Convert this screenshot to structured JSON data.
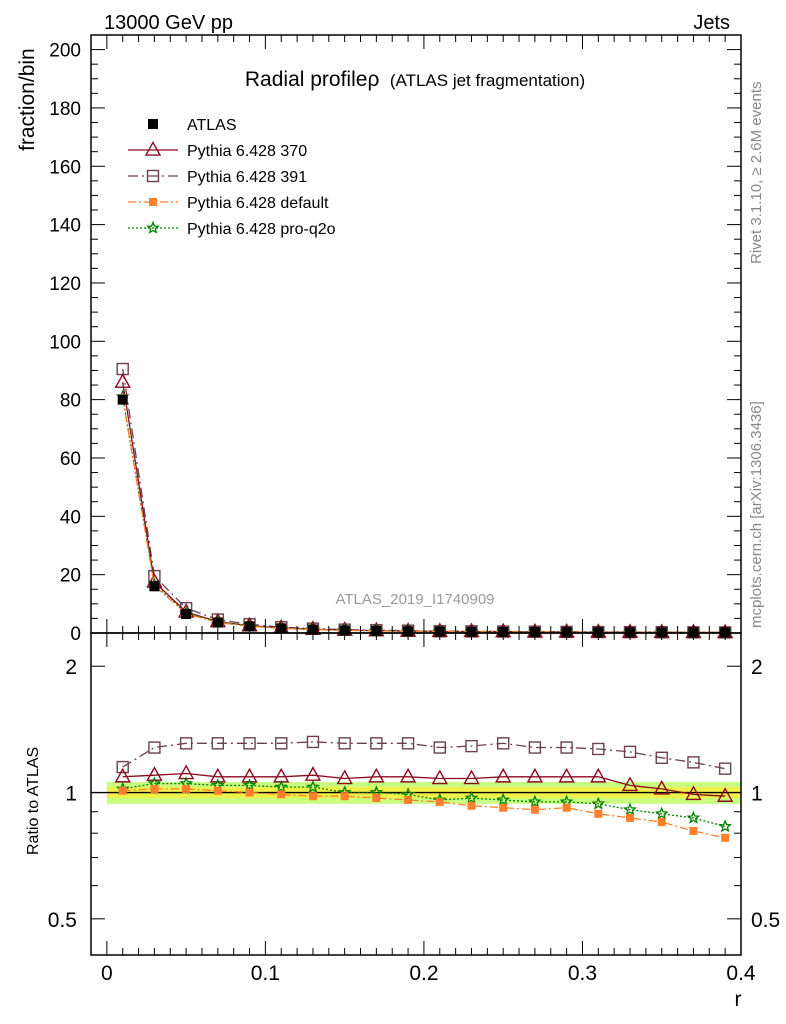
{
  "header": {
    "left": "13000 GeV pp",
    "right": "Jets"
  },
  "side_labels": {
    "rivet": "Rivet 3.1.10, ≥ 2.6M events",
    "mcplots": "mcplots.cern.ch [arXiv:1306.3436]"
  },
  "colors": {
    "atlas": "#000000",
    "p370": "#8b0a1e",
    "p391": "#6b4050",
    "pdefault": "#ff7f2a",
    "pq2o": "#008000",
    "band_inner": "#f0f04a",
    "band_outer": "#c8ff80"
  },
  "chart_data": [
    {
      "type": "line",
      "title_main": "Radial profileρ",
      "title_sub": "(ATLAS jet fragmentation)",
      "ylabel": "fraction/bin",
      "watermark": "ATLAS_2019_I1740909",
      "xlim": [
        -0.01,
        0.4
      ],
      "ylim": [
        0,
        205
      ],
      "yticks": [
        0,
        20,
        40,
        60,
        80,
        100,
        120,
        140,
        160,
        180,
        200
      ],
      "x": [
        0.01,
        0.03,
        0.05,
        0.07,
        0.09,
        0.11,
        0.13,
        0.15,
        0.17,
        0.19,
        0.21,
        0.23,
        0.25,
        0.27,
        0.29,
        0.31,
        0.33,
        0.35,
        0.37,
        0.39
      ],
      "legend_placement": "top-left",
      "series": [
        {
          "name": "ATLAS",
          "key": "atlas",
          "values": [
            80,
            16,
            6.5,
            3.6,
            2.3,
            1.6,
            1.2,
            0.9,
            0.75,
            0.6,
            0.5,
            0.45,
            0.4,
            0.35,
            0.3,
            0.27,
            0.25,
            0.22,
            0.2,
            0.18
          ]
        },
        {
          "name": "Pythia 6.428 370",
          "key": "p370",
          "values": [
            86,
            17.5,
            7.2,
            3.9,
            2.5,
            1.75,
            1.3,
            1.0,
            0.8,
            0.65,
            0.55,
            0.5,
            0.45,
            0.38,
            0.33,
            0.3,
            0.26,
            0.23,
            0.2,
            0.18
          ]
        },
        {
          "name": "Pythia 6.428 391",
          "key": "p391",
          "values": [
            90.5,
            19.5,
            8.5,
            4.6,
            3.0,
            2.0,
            1.5,
            1.15,
            0.95,
            0.8,
            0.6,
            0.55,
            0.5,
            0.45,
            0.37,
            0.33,
            0.3,
            0.27,
            0.23,
            0.21
          ]
        },
        {
          "name": "Pythia 6.428 default",
          "key": "pdefault",
          "values": [
            80.5,
            16.2,
            6.6,
            3.6,
            2.3,
            1.58,
            1.17,
            0.88,
            0.73,
            0.58,
            0.47,
            0.42,
            0.37,
            0.33,
            0.28,
            0.25,
            0.22,
            0.19,
            0.17,
            0.15
          ]
        },
        {
          "name": "Pythia 6.428 pro-q2o",
          "key": "pq2o",
          "values": [
            81,
            16.5,
            6.8,
            3.8,
            2.4,
            1.65,
            1.25,
            0.92,
            0.75,
            0.6,
            0.48,
            0.44,
            0.39,
            0.34,
            0.29,
            0.26,
            0.23,
            0.2,
            0.18,
            0.16
          ]
        }
      ]
    },
    {
      "type": "line",
      "ylabel": "Ratio to ATLAS",
      "xlabel": "r",
      "scale": "log",
      "xlim": [
        -0.01,
        0.4
      ],
      "ylim": [
        0.41,
        2.4
      ],
      "yticks": [
        0.5,
        1,
        2
      ],
      "ytick_labels": [
        "0.5",
        "1",
        "2"
      ],
      "xticks": [
        0,
        0.1,
        0.2,
        0.3,
        0.4
      ],
      "xtick_labels": [
        "0",
        "0.1",
        "0.2",
        "0.3",
        "0.4"
      ],
      "x": [
        0.01,
        0.03,
        0.05,
        0.07,
        0.09,
        0.11,
        0.13,
        0.15,
        0.17,
        0.19,
        0.21,
        0.23,
        0.25,
        0.27,
        0.29,
        0.31,
        0.33,
        0.35,
        0.37,
        0.39
      ],
      "band_inner": 0.03,
      "band_outer": 0.06,
      "series": [
        {
          "name": "Pythia 6.428 370",
          "key": "p370",
          "values": [
            1.09,
            1.1,
            1.11,
            1.09,
            1.09,
            1.09,
            1.1,
            1.08,
            1.09,
            1.09,
            1.08,
            1.08,
            1.09,
            1.09,
            1.09,
            1.09,
            1.04,
            1.02,
            0.99,
            0.98
          ]
        },
        {
          "name": "Pythia 6.428 391",
          "key": "p391",
          "values": [
            1.15,
            1.28,
            1.31,
            1.31,
            1.31,
            1.31,
            1.32,
            1.31,
            1.31,
            1.31,
            1.28,
            1.29,
            1.31,
            1.28,
            1.28,
            1.27,
            1.25,
            1.21,
            1.18,
            1.14
          ]
        },
        {
          "name": "Pythia 6.428 default",
          "key": "pdefault",
          "values": [
            1.01,
            1.02,
            1.02,
            1.01,
            1.0,
            0.99,
            0.98,
            0.98,
            0.97,
            0.96,
            0.95,
            0.93,
            0.92,
            0.91,
            0.92,
            0.89,
            0.87,
            0.85,
            0.81,
            0.78
          ]
        },
        {
          "name": "Pythia 6.428 pro-q2o",
          "key": "pq2o",
          "values": [
            1.02,
            1.05,
            1.05,
            1.04,
            1.04,
            1.03,
            1.03,
            1.0,
            1.0,
            0.99,
            0.96,
            0.97,
            0.96,
            0.95,
            0.95,
            0.94,
            0.91,
            0.89,
            0.87,
            0.83
          ]
        }
      ]
    }
  ]
}
